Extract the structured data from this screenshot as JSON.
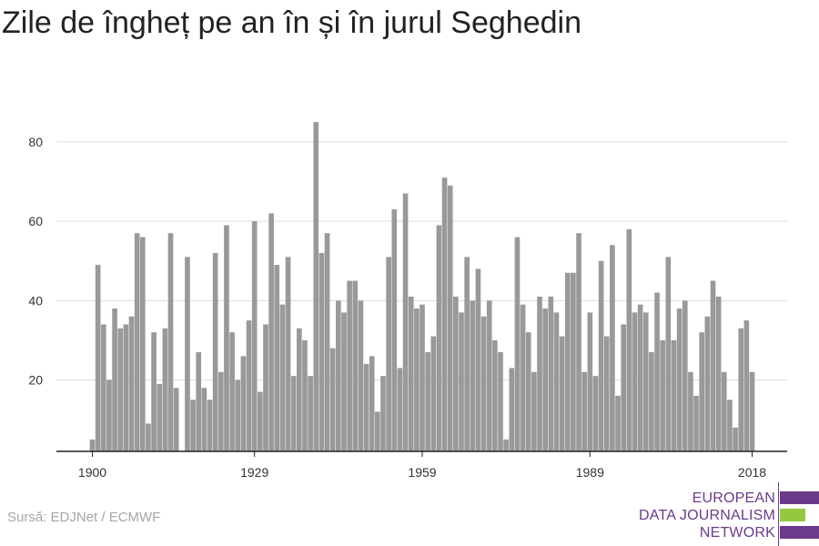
{
  "title": "Zile de îngheț pe an în și în jurul Seghedin",
  "source": "Sursă: EDJNet / ECMWF",
  "logo": {
    "line1": "EUROPEAN",
    "line2": "DATA JOURNALISM",
    "line3": "NETWORK",
    "purple": "#6b3a8a",
    "green": "#95c93d"
  },
  "colors": {
    "bar": "#999999",
    "grid": "#dddddd",
    "axis": "#222222",
    "tick_text": "#333333"
  },
  "chart_data": {
    "type": "bar",
    "title": "Zile de îngheț pe an în și în jurul Seghedin",
    "xlabel": "",
    "ylabel": "",
    "x_start": 1900,
    "x_end": 2018,
    "x_ticks": [
      1900,
      1929,
      1959,
      1989,
      2018
    ],
    "y_ticks": [
      20,
      40,
      60,
      80
    ],
    "ylim": [
      2,
      88
    ],
    "grid": true,
    "series": [
      {
        "values": [
          5,
          49,
          34,
          20,
          38,
          33,
          34,
          36,
          57,
          56,
          9,
          32,
          19,
          33,
          57,
          18,
          2,
          51,
          15,
          27,
          18,
          15,
          52,
          22,
          59,
          32,
          20,
          26,
          35,
          60,
          17,
          34,
          62,
          49,
          39,
          51,
          21,
          33,
          30,
          21,
          85,
          52,
          57,
          28,
          40,
          37,
          45,
          45,
          40,
          24,
          26,
          12,
          21,
          51,
          63,
          23,
          67,
          41,
          38,
          39,
          27,
          31,
          59,
          71,
          69,
          41,
          37,
          51,
          40,
          48,
          36,
          40,
          30,
          27,
          5,
          23,
          56,
          39,
          32,
          22,
          41,
          38,
          41,
          37,
          31,
          47,
          47,
          57,
          22,
          37,
          21,
          50,
          31,
          54,
          16,
          34,
          58,
          37,
          39,
          37,
          27,
          42,
          30,
          51,
          30,
          38,
          40,
          22,
          16,
          32,
          36,
          45,
          41,
          22,
          15,
          8,
          33,
          35,
          22
        ]
      }
    ]
  }
}
